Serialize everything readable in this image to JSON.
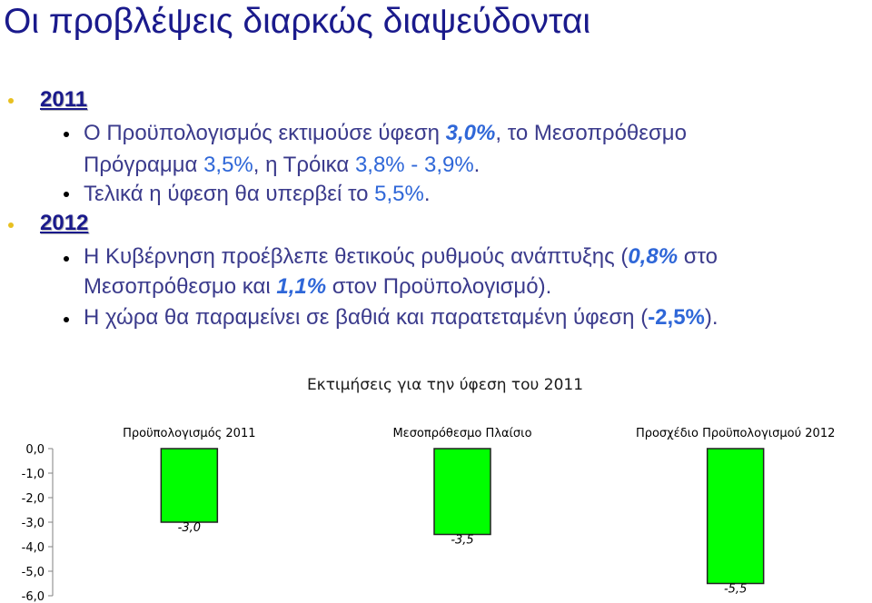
{
  "slide": {
    "title": "Οι προβλέψεις διαρκώς διαψεύδονται"
  },
  "section_2011": {
    "year": "2011",
    "line1_prefix": "Ο Προϋπολογισμός εκτιμούσε ύφεση ",
    "line1_val": "3,0%",
    "line1_suffix": ", το Μεσοπρόθεσμο",
    "line2_prefix": "Πρόγραμμα ",
    "line2_val1": "3,5%",
    "line2_mid": ", η Τρόικα ",
    "line2_val2": "3,8% - 3,9%",
    "line2_suffix": ".",
    "line3_prefix": "Τελικά η ύφεση θα υπερβεί το ",
    "line3_val": "5,5%",
    "line3_suffix": "."
  },
  "section_2012": {
    "year": "2012",
    "line1_prefix": "Η Κυβέρνηση προέβλεπε θετικούς ρυθμούς ανάπτυξης (",
    "line1_val": "0,8%",
    "line1_suffix": " στο",
    "line2_prefix": "Μεσοπρόθεσμο και ",
    "line2_val": "1,1%",
    "line2_suffix": " στον Προϋπολογισμό).",
    "line3_prefix": "Η χώρα θα παραμείνει σε βαθιά και παρατεταμένη ύφεση (",
    "line3_val": "-2,5%",
    "line3_suffix": ")."
  },
  "colors": {
    "title": "#1a1a8c",
    "highlight": "#2f67d8",
    "bar_fill": "#00ff00",
    "bullet_level1": "#e8c020"
  },
  "chart_data": {
    "type": "bar",
    "title": "Εκτιμήσεις για την ύφεση του 2011",
    "categories": [
      "Προϋπολογισμός 2011",
      "Μεσοπρόθεσμο Πλαίσιο",
      "Προσχέδιο Προϋπολογισμού 2012"
    ],
    "values": [
      -3.0,
      -3.5,
      -5.5
    ],
    "value_labels": [
      "-3,0",
      "-3,5",
      "-5,5"
    ],
    "yticks": [
      "0,0",
      "-1,0",
      "-2,0",
      "-3,0",
      "-4,0",
      "-5,0",
      "-6,0"
    ],
    "ylim": [
      -6,
      0
    ],
    "category_axis_position": "top",
    "grid": false,
    "legend": "none"
  }
}
